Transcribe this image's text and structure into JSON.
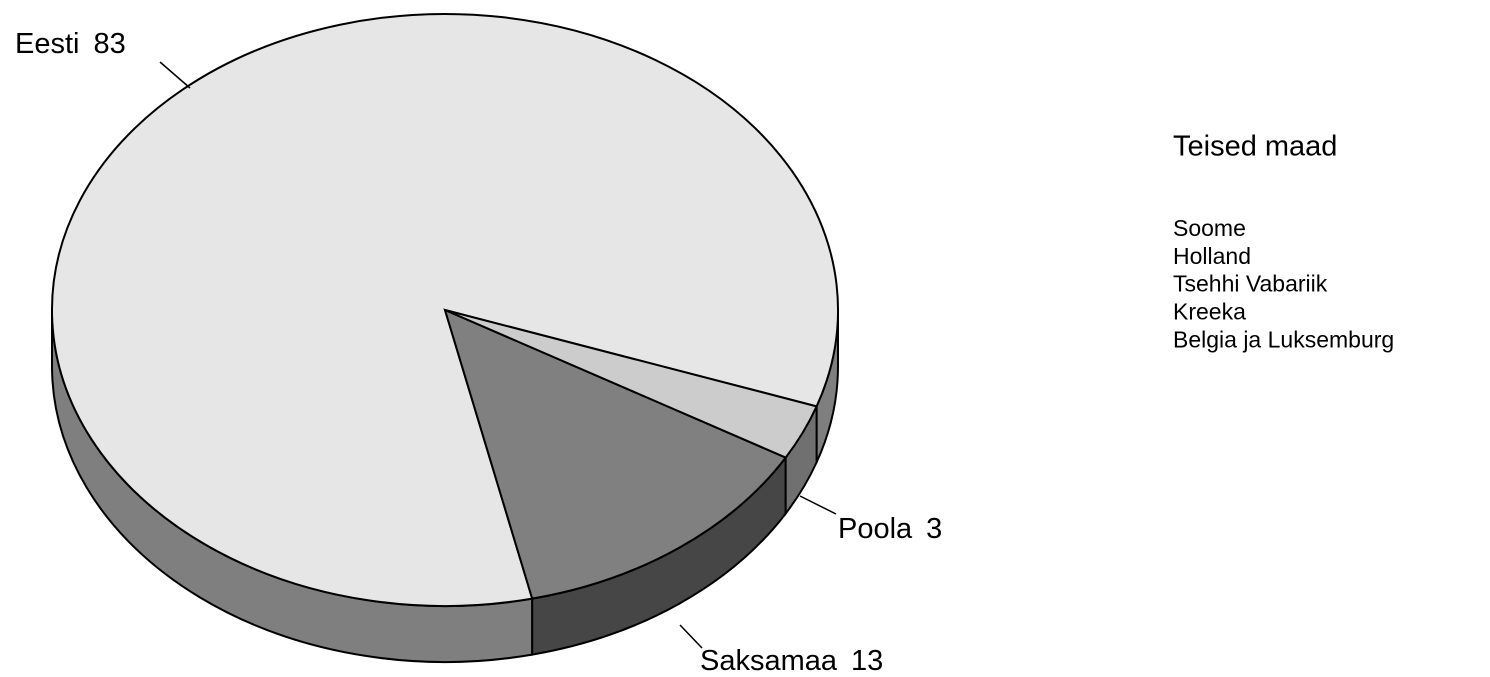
{
  "chart_data": {
    "type": "pie",
    "categories": [
      "Eesti",
      "Saksamaa",
      "Poola"
    ],
    "values": [
      83,
      13,
      3
    ],
    "colors": [
      "#e6e6e6",
      "#808080",
      "#cccccc"
    ],
    "legend_title": "Teised maad",
    "legend_items": [
      "Soome",
      "Holland",
      "Tsehhi Vabariik",
      "Kreeka",
      "Belgia ja Luksemburg"
    ]
  }
}
